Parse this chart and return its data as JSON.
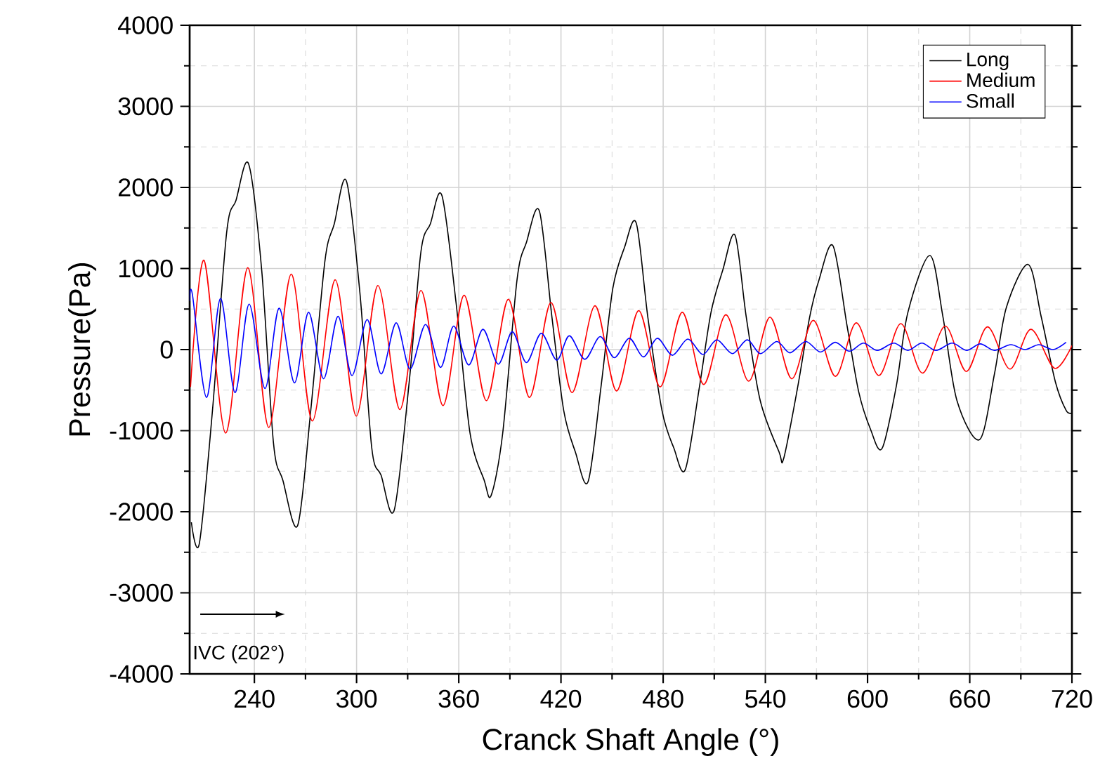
{
  "chart_data": {
    "type": "line",
    "xlabel": "Cranck Shaft Angle (°)",
    "ylabel": "Pressure(Pa)",
    "xlim": [
      202,
      720
    ],
    "xticks": [
      240,
      300,
      360,
      420,
      480,
      540,
      600,
      660,
      720
    ],
    "ylim": [
      -4000,
      4000
    ],
    "yticks": [
      -4000,
      -3000,
      -2000,
      -1000,
      0,
      1000,
      2000,
      3000,
      4000
    ],
    "grid": true,
    "legend": "top right",
    "marker": "none",
    "line_style": "solid",
    "annotations": [
      "IVC (202°)"
    ],
    "series": [
      {
        "name": "Long",
        "color": "#000000",
        "x": [
          203,
          207.7,
          215.4,
          223.7,
          229.2,
          236.6,
          244.3,
          251.2,
          256.7,
          265.4,
          273.1,
          281.4,
          286.9,
          294,
          302,
          308.9,
          314.4,
          322.1,
          330.9,
          337.8,
          343.3,
          350.1,
          358.4,
          366.6,
          374.9,
          379,
          385.8,
          394.2,
          399.7,
          407.3,
          414.7,
          421.6,
          428.4,
          435.9,
          443.5,
          450.4,
          457.3,
          464.2,
          471,
          479.3,
          486.2,
          493,
          501.3,
          508.1,
          515,
          522.2,
          528.8,
          537,
          548,
          550.8,
          559,
          566,
          571.5,
          579.7,
          588,
          594.8,
          601.7,
          608.5,
          616.8,
          623.7,
          636.6,
          644.3,
          652.5,
          665.8,
          674.6,
          681.5,
          694.3,
          702,
          710.3,
          716.6,
          720
        ],
        "values": [
          -2130,
          -2390,
          -750,
          1440,
          1840,
          2290,
          980,
          -1150,
          -1610,
          -2170,
          -750,
          1090,
          1550,
          2080,
          690,
          -1210,
          -1550,
          -1980,
          -400,
          1210,
          1550,
          1900,
          580,
          -1030,
          -1610,
          -1800,
          -1030,
          860,
          1320,
          1710,
          400,
          -750,
          -1260,
          -1630,
          -460,
          750,
          1260,
          1560,
          400,
          -750,
          -1210,
          -1480,
          -460,
          460,
          980,
          1410,
          400,
          -630,
          -1260,
          -1340,
          -460,
          400,
          860,
          1280,
          290,
          -520,
          -980,
          -1220,
          -460,
          460,
          1160,
          400,
          -630,
          -1110,
          -290,
          520,
          1050,
          400,
          -400,
          -750,
          -780
        ]
      },
      {
        "name": "Medium",
        "color": "#ff0000",
        "x": [
          202.5,
          210.5,
          223.1,
          236.1,
          248.4,
          261.6,
          274,
          287.4,
          299.8,
          312.5,
          325.4,
          337.8,
          350.7,
          363.1,
          376.2,
          389.1,
          401.5,
          414.1,
          426.5,
          440,
          452.6,
          465.6,
          478.2,
          491.2,
          503.8,
          516.8,
          530.2,
          542.7,
          555.5,
          568.1,
          581.1,
          593.4,
          606.6,
          619.5,
          632.2,
          645.6,
          658,
          670.4,
          683.6,
          695.9,
          709.7,
          720
        ],
        "values": [
          -460,
          1100,
          -1030,
          1010,
          -960,
          930,
          -880,
          860,
          -820,
          790,
          -740,
          730,
          -690,
          670,
          -630,
          620,
          -590,
          580,
          -530,
          540,
          -510,
          480,
          -460,
          460,
          -430,
          430,
          -390,
          400,
          -360,
          360,
          -330,
          330,
          -320,
          320,
          -290,
          290,
          -270,
          280,
          -240,
          250,
          -230,
          50
        ]
      },
      {
        "name": "Small",
        "color": "#0000ff",
        "x": [
          202,
          203.6,
          211.9,
          220.1,
          228.6,
          236.9,
          246.2,
          254.5,
          263.5,
          271.8,
          280.6,
          289.1,
          297.3,
          306.2,
          314.4,
          323.2,
          331.4,
          340.5,
          349.3,
          357,
          365.8,
          374.2,
          383.2,
          391.4,
          399.7,
          408.4,
          417.5,
          424.9,
          434,
          443,
          451.3,
          460.1,
          468.4,
          476.6,
          485.4,
          494.5,
          503.3,
          511.5,
          520.6,
          529.4,
          537.1,
          546.7,
          554.4,
          563.7,
          572.3,
          581,
          589.3,
          597.5,
          605.8,
          615.4,
          623.7,
          631.9,
          640.2,
          649.7,
          658.1,
          666.2,
          674.5,
          684.1,
          692.4,
          700.6,
          708.9,
          716.6
        ],
        "values": [
          600,
          680,
          -590,
          630,
          -530,
          560,
          -480,
          510,
          -410,
          460,
          -360,
          410,
          -320,
          370,
          -300,
          330,
          -240,
          310,
          -220,
          290,
          -190,
          250,
          -180,
          220,
          -160,
          200,
          -130,
          170,
          -120,
          160,
          -100,
          140,
          -90,
          140,
          -70,
          130,
          -60,
          120,
          -50,
          120,
          -50,
          100,
          -40,
          100,
          -30,
          90,
          -20,
          80,
          -10,
          80,
          -10,
          80,
          -10,
          80,
          -10,
          70,
          -10,
          60,
          0,
          60,
          0,
          90
        ]
      }
    ]
  }
}
